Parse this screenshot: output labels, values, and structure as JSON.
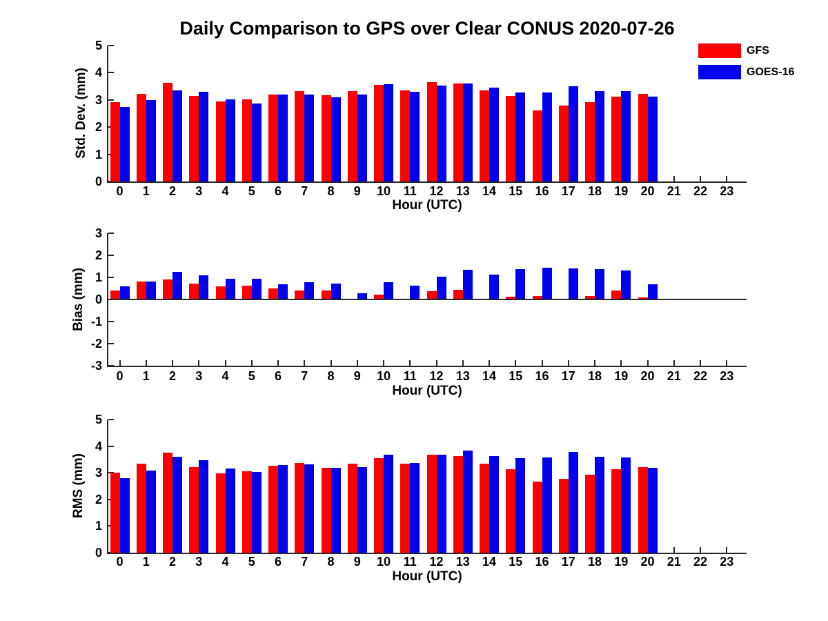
{
  "title": "Daily Comparison to GPS over Clear CONUS 2020-07-26",
  "legend": {
    "entries": [
      {
        "label": "GFS",
        "color": "#ff0000"
      },
      {
        "label": "GOES-16",
        "color": "#0000ee"
      }
    ]
  },
  "chart_data": [
    {
      "type": "bar",
      "name": "std-dev",
      "ylabel": "Std. Dev. (mm)",
      "xlabel": "Hour (UTC)",
      "ylim": [
        0,
        5
      ],
      "yticks": [
        0,
        1,
        2,
        3,
        4,
        5
      ],
      "grid": false,
      "categories": [
        "0",
        "1",
        "2",
        "3",
        "4",
        "5",
        "6",
        "7",
        "8",
        "9",
        "10",
        "11",
        "12",
        "13",
        "14",
        "15",
        "16",
        "17",
        "18",
        "19",
        "20",
        "21",
        "22",
        "23"
      ],
      "series": [
        {
          "name": "GFS",
          "color": "#ff0000",
          "values": [
            2.92,
            3.22,
            3.62,
            3.14,
            2.95,
            3.02,
            3.2,
            3.32,
            3.16,
            3.32,
            3.55,
            3.34,
            3.66,
            3.6,
            3.34,
            3.15,
            2.62,
            2.78,
            2.92,
            3.12,
            3.22,
            null,
            null,
            null
          ]
        },
        {
          "name": "GOES-16",
          "color": "#0000ee",
          "values": [
            2.75,
            3.0,
            3.35,
            3.31,
            3.03,
            2.86,
            3.2,
            3.2,
            3.09,
            3.2,
            3.57,
            3.3,
            3.52,
            3.6,
            3.44,
            3.28,
            3.28,
            3.51,
            3.33,
            3.33,
            3.12,
            null,
            null,
            null
          ]
        }
      ]
    },
    {
      "type": "bar",
      "name": "bias",
      "ylabel": "Bias (mm)",
      "xlabel": "Hour (UTC)",
      "ylim": [
        -3,
        3
      ],
      "yticks": [
        -3,
        -2,
        -1,
        0,
        1,
        2,
        3
      ],
      "grid": false,
      "categories": [
        "0",
        "1",
        "2",
        "3",
        "4",
        "5",
        "6",
        "7",
        "8",
        "9",
        "10",
        "11",
        "12",
        "13",
        "14",
        "15",
        "16",
        "17",
        "18",
        "19",
        "20",
        "21",
        "22",
        "23"
      ],
      "series": [
        {
          "name": "GFS",
          "color": "#ff0000",
          "values": [
            0.42,
            0.82,
            0.9,
            0.73,
            0.58,
            0.61,
            0.49,
            0.41,
            0.42,
            0.02,
            0.23,
            0.04,
            0.39,
            0.43,
            0.01,
            0.12,
            0.15,
            0.01,
            0.17,
            0.4,
            0.08,
            null,
            null,
            null
          ]
        },
        {
          "name": "GOES-16",
          "color": "#0000ee",
          "values": [
            0.58,
            0.81,
            1.24,
            1.09,
            0.94,
            0.93,
            0.69,
            0.78,
            0.72,
            0.27,
            0.78,
            0.63,
            1.02,
            1.35,
            1.11,
            1.36,
            1.45,
            1.42,
            1.39,
            1.32,
            0.68,
            null,
            null,
            null
          ]
        }
      ]
    },
    {
      "type": "bar",
      "name": "rms",
      "ylabel": "RMS (mm)",
      "xlabel": "Hour (UTC)",
      "ylim": [
        0,
        5
      ],
      "yticks": [
        0,
        1,
        2,
        3,
        4,
        5
      ],
      "grid": false,
      "categories": [
        "0",
        "1",
        "2",
        "3",
        "4",
        "5",
        "6",
        "7",
        "8",
        "9",
        "10",
        "11",
        "12",
        "13",
        "14",
        "15",
        "16",
        "17",
        "18",
        "19",
        "20",
        "21",
        "22",
        "23"
      ],
      "series": [
        {
          "name": "GFS",
          "color": "#ff0000",
          "values": [
            3.0,
            3.33,
            3.76,
            3.22,
            2.98,
            3.06,
            3.26,
            3.36,
            3.19,
            3.33,
            3.56,
            3.35,
            3.67,
            3.63,
            3.35,
            3.14,
            2.66,
            2.76,
            2.92,
            3.14,
            3.21,
            null,
            null,
            null
          ]
        },
        {
          "name": "GOES-16",
          "color": "#0000ee",
          "values": [
            2.81,
            3.09,
            3.59,
            3.48,
            3.16,
            3.02,
            3.28,
            3.31,
            3.19,
            3.2,
            3.69,
            3.38,
            3.68,
            3.84,
            3.63,
            3.56,
            3.58,
            3.79,
            3.61,
            3.58,
            3.18,
            null,
            null,
            null
          ]
        }
      ]
    }
  ]
}
